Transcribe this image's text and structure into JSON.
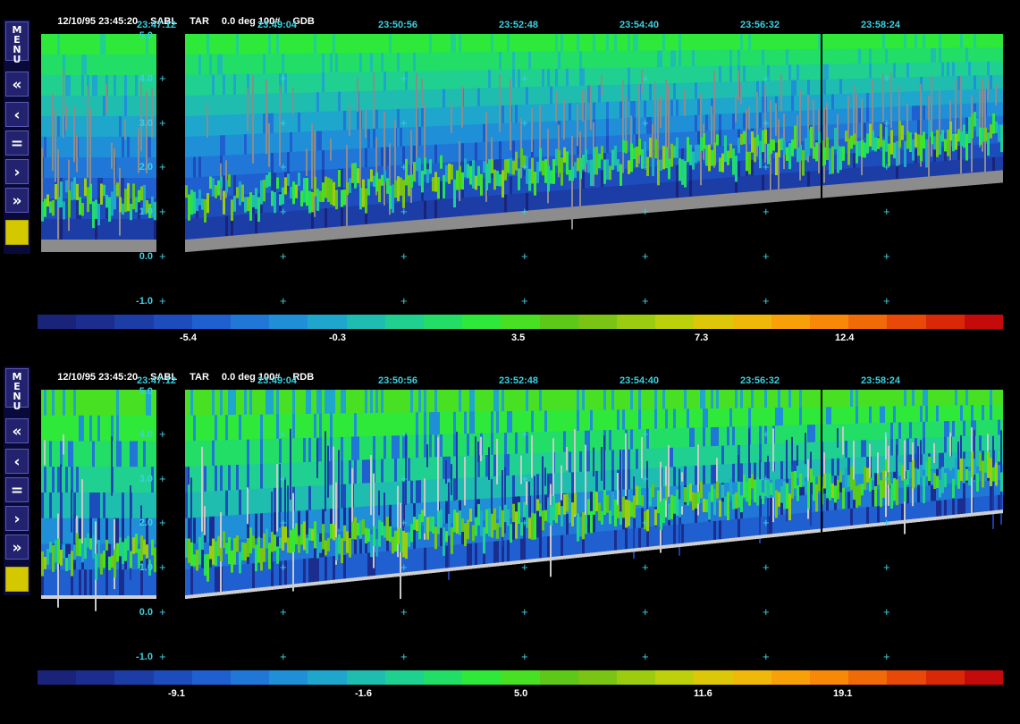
{
  "panels": [
    {
      "header": {
        "date": "12/10/95 23:45:20",
        "site": "SABL",
        "mode": "TAR",
        "angle": "0.0 deg 100#",
        "product": "GDB"
      },
      "time_ticks": [
        "23:47:12",
        "23:49:04",
        "23:50:56",
        "23:52:48",
        "23:54:40",
        "23:56:32",
        "23:58:24"
      ],
      "y_ticks": [
        "5.0",
        "4.0",
        "3.0",
        "2.0",
        "1.0",
        "0.0",
        "-1.0"
      ],
      "colorbar_labels": [
        "-5.4",
        "-0.3",
        "3.5",
        "7.3",
        "12.4"
      ],
      "menu_label": "MENU",
      "buttons": [
        "«",
        "‹",
        "=",
        "›",
        "»"
      ]
    },
    {
      "header": {
        "date": "12/10/95 23:45:20",
        "site": "SABL",
        "mode": "TAR",
        "angle": "0.0 deg 100#",
        "product": "RDB"
      },
      "time_ticks": [
        "23:47:12",
        "23:49:04",
        "23:50:56",
        "23:52:48",
        "23:54:40",
        "23:56:32",
        "23:58:24"
      ],
      "y_ticks": [
        "5.0",
        "4.0",
        "3.0",
        "2.0",
        "1.0",
        "0.0",
        "-1.0"
      ],
      "colorbar_labels": [
        "-9.1",
        "-1.6",
        "5.0",
        "11.6",
        "19.1"
      ],
      "menu_label": "MENU",
      "buttons": [
        "«",
        "‹",
        "=",
        "›",
        "»"
      ]
    }
  ],
  "colors": {
    "palette": [
      "#1a237a",
      "#1b2e8f",
      "#1c3ca6",
      "#1d4cbc",
      "#1f5fd0",
      "#2077d8",
      "#1f8fd8",
      "#1ea6cc",
      "#1fbcb0",
      "#20d090",
      "#22dd66",
      "#2ee83a",
      "#48e022",
      "#5dc818",
      "#7ac414",
      "#9ccc10",
      "#bcd00c",
      "#dcc808",
      "#f0b808",
      "#f8a008",
      "#f88808",
      "#f06a08",
      "#e84808",
      "#d82808",
      "#c40a0a"
    ],
    "ground": "#8c8c8c",
    "accent": "#3ad0e0"
  }
}
